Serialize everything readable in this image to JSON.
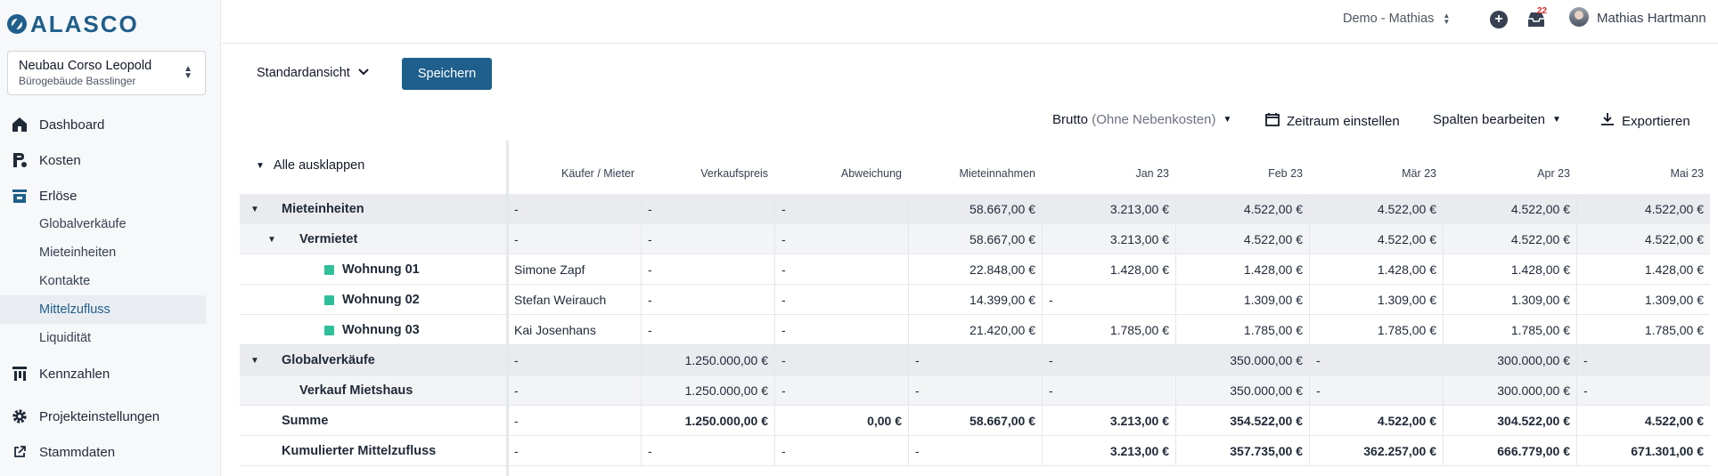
{
  "brand": {
    "name": "ALASCO"
  },
  "project": {
    "name": "Neubau Corso Leopold",
    "building": "Bürogebäude Basslinger"
  },
  "nav": {
    "dashboard": "Dashboard",
    "kosten": "Kosten",
    "erloese": "Erlöse",
    "erloese_sub": [
      "Globalverkäufe",
      "Mieteinheiten",
      "Kontakte",
      "Mittelzufluss",
      "Liquidität"
    ],
    "active_sub": "Mittelzufluss",
    "kennzahlen": "Kennzahlen",
    "projekteinstellungen": "Projekteinstellungen",
    "stammdaten": "Stammdaten"
  },
  "header": {
    "org": "Demo - Mathias",
    "notifications": "22",
    "user": "Mathias Hartmann"
  },
  "toolbar": {
    "view": "Standardansicht",
    "save": "Speichern",
    "brutto": "Brutto",
    "brutto_note": "(Ohne Nebenkosten)",
    "zeitraum": "Zeitraum einstellen",
    "spalten": "Spalten bearbeiten",
    "export": "Exportieren"
  },
  "table": {
    "collapse_all": "Alle ausklappen",
    "columns": [
      "Käufer / Mieter",
      "Verkaufspreis",
      "Abweichung",
      "Mieteinnahmen",
      "Jan 23",
      "Feb 23",
      "Mär 23",
      "Apr 23",
      "Mai 23"
    ],
    "rows": [
      {
        "label": "Mieteinheiten",
        "cells": [
          "-",
          "-",
          "-",
          "58.667,00 €",
          "3.213,00 €",
          "4.522,00 €",
          "4.522,00 €",
          "4.522,00 €",
          "4.522,00 €"
        ]
      },
      {
        "label": "Vermietet",
        "cells": [
          "-",
          "-",
          "-",
          "58.667,00 €",
          "3.213,00 €",
          "4.522,00 €",
          "4.522,00 €",
          "4.522,00 €",
          "4.522,00 €"
        ]
      },
      {
        "label": "Wohnung 01",
        "cells": [
          "Simone Zapf",
          "-",
          "-",
          "22.848,00 €",
          "1.428,00 €",
          "1.428,00 €",
          "1.428,00 €",
          "1.428,00 €",
          "1.428,00 €"
        ]
      },
      {
        "label": "Wohnung 02",
        "cells": [
          "Stefan Weirauch",
          "-",
          "-",
          "14.399,00 €",
          "-",
          "1.309,00 €",
          "1.309,00 €",
          "1.309,00 €",
          "1.309,00 €"
        ]
      },
      {
        "label": "Wohnung 03",
        "cells": [
          "Kai Josenhans",
          "-",
          "-",
          "21.420,00 €",
          "1.785,00 €",
          "1.785,00 €",
          "1.785,00 €",
          "1.785,00 €",
          "1.785,00 €"
        ]
      },
      {
        "label": "Globalverkäufe",
        "cells": [
          "-",
          "1.250.000,00 €",
          "-",
          "-",
          "-",
          "350.000,00 €",
          "-",
          "300.000,00 €",
          "-"
        ]
      },
      {
        "label": "Verkauf Mietshaus",
        "cells": [
          "-",
          "1.250.000,00 €",
          "-",
          "-",
          "-",
          "350.000,00 €",
          "-",
          "300.000,00 €",
          "-"
        ]
      },
      {
        "label": "Summe",
        "cells": [
          "-",
          "1.250.000,00 €",
          "0,00 €",
          "58.667,00 €",
          "3.213,00 €",
          "354.522,00 €",
          "4.522,00 €",
          "304.522,00 €",
          "4.522,00 €"
        ]
      },
      {
        "label": "Kumulierter Mittelzufluss",
        "cells": [
          "-",
          "-",
          "-",
          "-",
          "3.213,00 €",
          "357.735,00 €",
          "362.257,00 €",
          "666.779,00 €",
          "671.301,00 €"
        ]
      }
    ]
  },
  "colors": {
    "primary": "#1f5f8b",
    "unit_marker": "#2fbf9b",
    "badge": "#dc2626"
  }
}
